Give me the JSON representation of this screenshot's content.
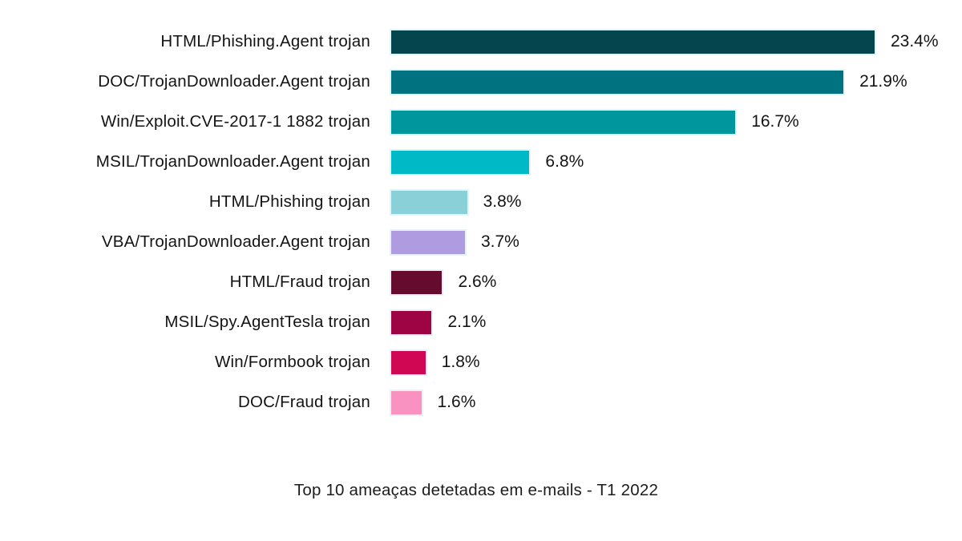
{
  "chart_data": {
    "type": "bar",
    "orientation": "horizontal",
    "title": "Top 10 ameaças detetadas em e-mails - T1 2022",
    "xlabel": "",
    "ylabel": "",
    "xlim": [
      0,
      25
    ],
    "grid": false,
    "legend": false,
    "categories": [
      "HTML/Phishing.Agent trojan",
      "DOC/TrojanDownloader.Agent trojan",
      "Win/Exploit.CVE-2017-1 1882 trojan",
      "MSIL/TrojanDownloader.Agent trojan",
      "HTML/Phishing trojan",
      "VBA/TrojanDownloader.Agent trojan",
      "HTML/Fraud trojan",
      "MSIL/Spy.AgentTesla trojan",
      "Win/Formbook trojan",
      "DOC/Fraud trojan"
    ],
    "values": [
      23.4,
      21.9,
      16.7,
      6.8,
      3.8,
      3.7,
      2.6,
      2.1,
      1.8,
      1.6
    ],
    "value_labels": [
      "23.4%",
      "21.9%",
      "16.7%",
      "6.8%",
      "3.8%",
      "3.7%",
      "2.6%",
      "2.1%",
      "1.8%",
      "1.6%"
    ],
    "bar_colors": [
      "#05454e",
      "#007280",
      "#00969e",
      "#00b9c6",
      "#8ad0d8",
      "#ae9be0",
      "#650b2e",
      "#9e0443",
      "#d00853",
      "#f991c1"
    ],
    "colors": {
      "background": "#ffffff",
      "text": "#141414",
      "bar_border": "#e7f2f5"
    }
  }
}
